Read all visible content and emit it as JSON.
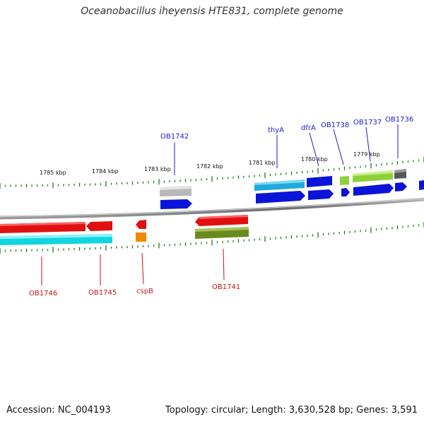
{
  "title": "Oceanobacillus iheyensis HTE831, complete genome",
  "footer": {
    "accession": "Accession: NC_004193",
    "stats": "Topology: circular; Length: 3,630,528 bp; Genes: 3,591"
  },
  "colors": {
    "backbone": "#8a8a8a",
    "tick": "#1f7a1f",
    "forward_label": "#1a1acc",
    "reverse_label": "#cc1111"
  },
  "scale_labels": [
    "1785 kbp",
    "1784 kbp",
    "1783 kbp",
    "1782 kbp",
    "1781 kbp",
    "1780 kbp",
    "1779 kbp"
  ],
  "forward_genes": [
    "OB1742",
    "thyA",
    "dfrA",
    "OB1738",
    "OB1737",
    "OB1736"
  ],
  "reverse_genes": [
    "OB1746",
    "OB1745",
    "cspB",
    "OB1741"
  ]
}
